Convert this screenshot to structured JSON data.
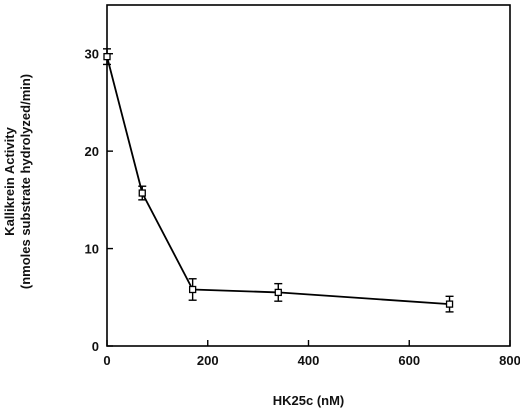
{
  "chart_data": {
    "type": "line",
    "title": "",
    "xlabel": "HK25c (nM)",
    "ylabel_line1": "Kallikrein Activity",
    "ylabel_line2": "(nmoles substrate hydrolyzed/min)",
    "xlim": [
      0,
      800
    ],
    "ylim": [
      0,
      35
    ],
    "x_ticks": [
      0,
      200,
      400,
      600,
      800
    ],
    "y_ticks": [
      0,
      10,
      20,
      30
    ],
    "grid": false,
    "legend": "none",
    "series": [
      {
        "x": [
          0,
          70,
          170,
          340,
          680
        ],
        "y": [
          29.7,
          15.7,
          5.8,
          5.5,
          4.3
        ],
        "yerr": [
          0.8,
          0.7,
          1.1,
          0.9,
          0.8
        ],
        "marker": "open-square",
        "color": "#000000"
      }
    ]
  }
}
